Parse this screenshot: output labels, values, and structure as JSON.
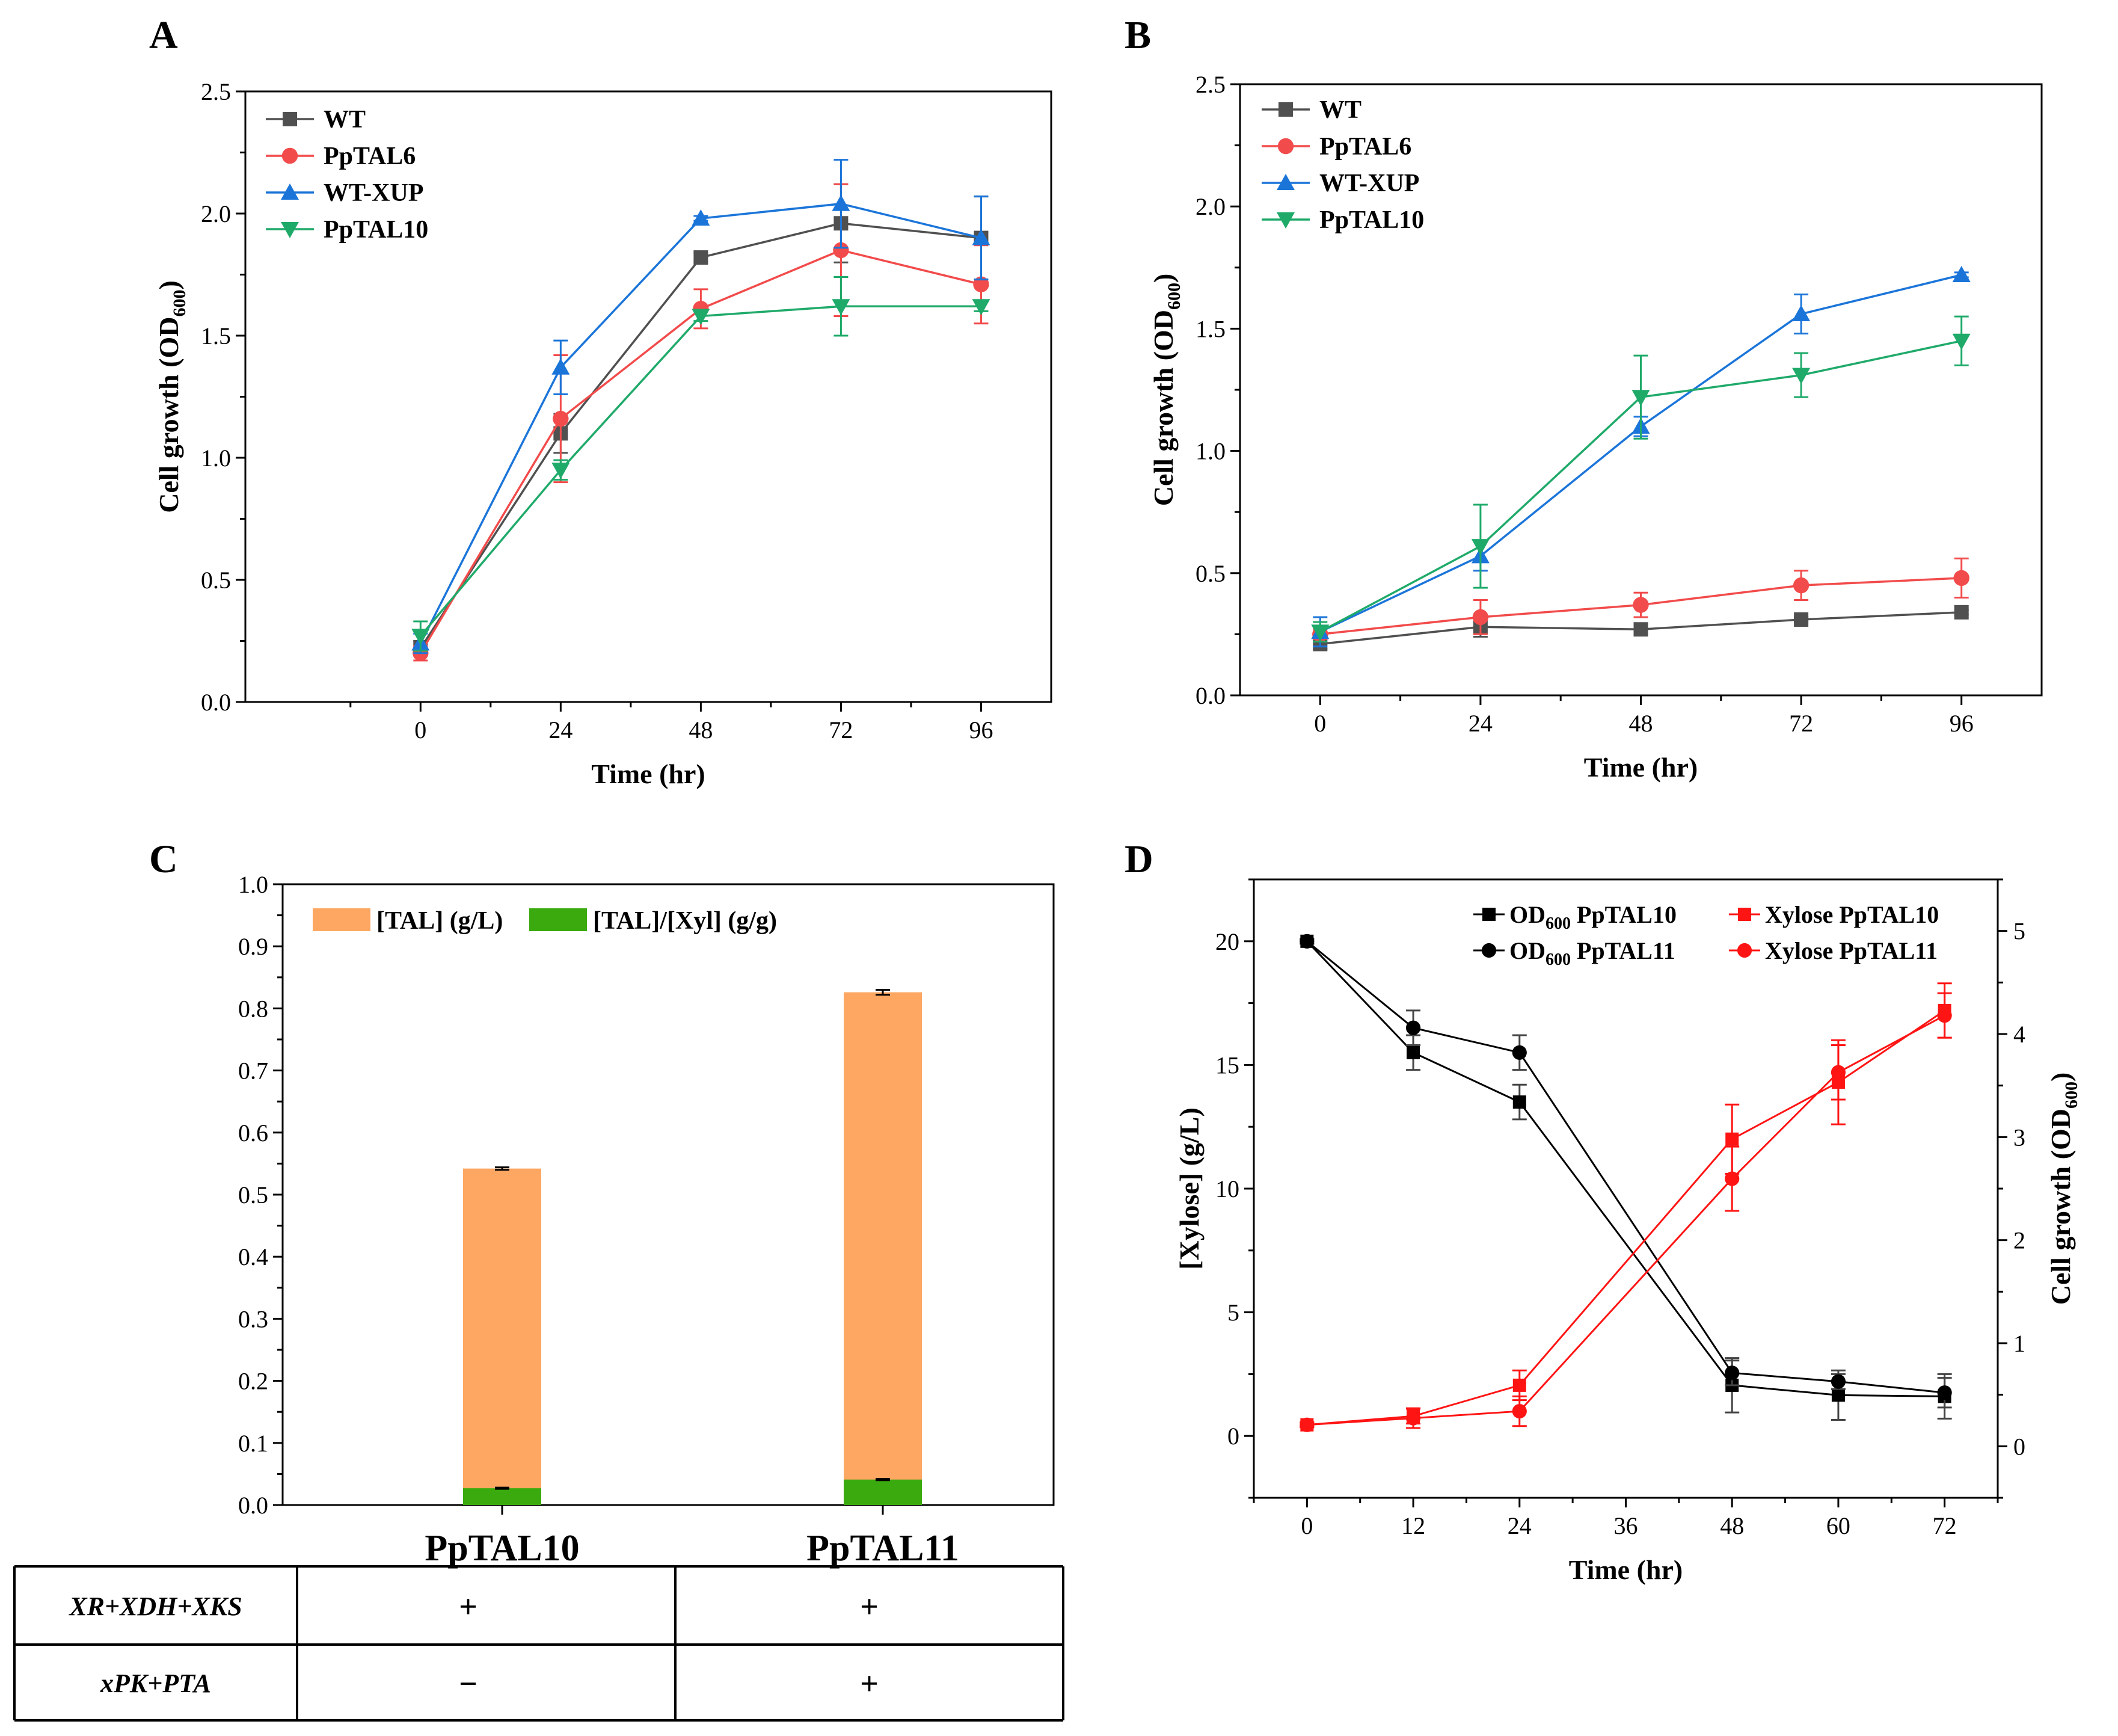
{
  "colors": {
    "wt": "#505050",
    "pptal6": "#f24b4b",
    "wtxup": "#1b75d9",
    "pptal10": "#1faa6a",
    "tal_bar": "#fda762",
    "ratio_bar": "#3aaa0e",
    "od_line": "#000000",
    "xylose_line": "#ff1414"
  },
  "chart_data": [
    {
      "panel": "A",
      "type": "line",
      "xlabel": "Time (hr)",
      "ylabel_main": "Cell growth (OD",
      "ylabel_sub": "600",
      "ylabel_close": ")",
      "x": [
        0,
        24,
        48,
        72,
        96
      ],
      "xlim": [
        -30,
        108
      ],
      "ylim": [
        0,
        2.5
      ],
      "xticks": [
        "0",
        "24",
        "48",
        "72",
        "96"
      ],
      "yticks": [
        "0.0",
        "0.5",
        "1.0",
        "1.5",
        "2.0",
        "2.5"
      ],
      "legend_position": "top-left",
      "series": [
        {
          "name": "WT",
          "key": "wt",
          "marker": "square",
          "values": [
            0.22,
            1.1,
            1.82,
            1.96,
            1.9
          ],
          "err": [
            0.03,
            0.08,
            0.02,
            0.16,
            0.17
          ]
        },
        {
          "name": "PpTAL6",
          "key": "pptal6",
          "marker": "circle",
          "values": [
            0.2,
            1.16,
            1.61,
            1.85,
            1.71
          ],
          "err": [
            0.03,
            0.26,
            0.08,
            0.27,
            0.16
          ]
        },
        {
          "name": "WT-XUP",
          "key": "wtxup",
          "marker": "triangle-up",
          "values": [
            0.24,
            1.37,
            1.98,
            2.04,
            1.9
          ],
          "err": [
            0.04,
            0.11,
            0.01,
            0.18,
            0.17
          ]
        },
        {
          "name": "PpTAL10",
          "key": "pptal10",
          "marker": "triangle-down",
          "values": [
            0.27,
            0.95,
            1.58,
            1.62,
            1.62
          ],
          "err": [
            0.06,
            0.04,
            0.02,
            0.12,
            0.02
          ]
        }
      ]
    },
    {
      "panel": "B",
      "type": "line",
      "xlabel": "Time (hr)",
      "ylabel_main": "Cell growth (OD",
      "ylabel_sub": "600",
      "ylabel_close": ")",
      "x": [
        0,
        24,
        48,
        72,
        96
      ],
      "xlim": [
        -12,
        108
      ],
      "ylim": [
        0,
        2.5
      ],
      "xticks": [
        "0",
        "24",
        "48",
        "72",
        "96"
      ],
      "yticks": [
        "0.0",
        "0.5",
        "1.0",
        "1.5",
        "2.0",
        "2.5"
      ],
      "legend_position": "top-left",
      "series": [
        {
          "name": "WT",
          "key": "wt",
          "marker": "square",
          "values": [
            0.21,
            0.28,
            0.27,
            0.31,
            0.34
          ],
          "err": [
            0.02,
            0.04,
            0.01,
            0.01,
            0.01
          ]
        },
        {
          "name": "PpTAL6",
          "key": "pptal6",
          "marker": "circle",
          "values": [
            0.25,
            0.32,
            0.37,
            0.45,
            0.48
          ],
          "err": [
            0.02,
            0.07,
            0.05,
            0.06,
            0.08
          ]
        },
        {
          "name": "WT-XUP",
          "key": "wtxup",
          "marker": "triangle-up",
          "values": [
            0.26,
            0.57,
            1.1,
            1.56,
            1.72
          ],
          "err": [
            0.06,
            0.06,
            0.04,
            0.08,
            0.01
          ]
        },
        {
          "name": "PpTAL10",
          "key": "pptal10",
          "marker": "triangle-down",
          "values": [
            0.26,
            0.61,
            1.22,
            1.31,
            1.45
          ],
          "err": [
            0.04,
            0.17,
            0.17,
            0.09,
            0.1
          ]
        }
      ]
    },
    {
      "panel": "C",
      "type": "bar",
      "stacked": "overlay",
      "categories": [
        "PpTAL10",
        "PpTAL11"
      ],
      "ylim": [
        0,
        1.0
      ],
      "yticks": [
        "0.0",
        "0.1",
        "0.2",
        "0.3",
        "0.4",
        "0.5",
        "0.6",
        "0.7",
        "0.8",
        "0.9",
        "1.0"
      ],
      "legend_position": "top",
      "series": [
        {
          "name": "[TAL] (g/L)",
          "key": "tal_bar",
          "values": [
            0.542,
            0.826
          ],
          "err": [
            0.002,
            0.004
          ]
        },
        {
          "name": "[TAL]/[Xyl] (g/g)",
          "key": "ratio_bar",
          "values": [
            0.027,
            0.041
          ],
          "err": [
            0.001,
            0.001
          ]
        }
      ],
      "table": {
        "rows": [
          {
            "label": "XR+XDH+XKS",
            "values": [
              "+",
              "+"
            ]
          },
          {
            "label": "xPK+PTA",
            "values": [
              "−",
              "+"
            ]
          }
        ]
      }
    },
    {
      "panel": "D",
      "type": "line",
      "xlabel": "Time (hr)",
      "ylabel_left": "[Xylose] (g/L)",
      "ylabel_right_main": "Cell growth (OD",
      "ylabel_right_sub": "600",
      "ylabel_right_close": ")",
      "x": [
        0,
        12,
        24,
        48,
        60,
        72
      ],
      "xlim": [
        -6,
        78
      ],
      "ylim_left": [
        -2.5,
        22.5
      ],
      "ylim_right": [
        -0.5,
        5.5
      ],
      "xticks": [
        "0",
        "12",
        "24",
        "36",
        "48",
        "60",
        "72"
      ],
      "xtick_values": [
        0,
        12,
        24,
        36,
        48,
        60,
        72
      ],
      "yticks_left": [
        "0",
        "5",
        "10",
        "15",
        "20"
      ],
      "yticks_right": [
        "0",
        "1",
        "2",
        "3",
        "4",
        "5"
      ],
      "legend_position": "top-right",
      "series": [
        {
          "name_prefix": "OD",
          "name_sub": "600",
          "name_suffix": " PpTAL10",
          "key": "od_line",
          "marker": "square",
          "axis": "left",
          "values": [
            20.0,
            15.5,
            13.5,
            2.05,
            1.65,
            1.6
          ],
          "err": [
            0.1,
            0.7,
            0.7,
            1.1,
            1.0,
            0.9
          ]
        },
        {
          "name_prefix": "OD",
          "name_sub": "600",
          "name_suffix": " PpTAL11",
          "key": "od_line",
          "marker": "circle",
          "axis": "left",
          "values": [
            20.0,
            16.5,
            15.5,
            2.55,
            2.2,
            1.75
          ],
          "err": [
            0.1,
            0.7,
            0.7,
            0.5,
            0.3,
            0.6
          ]
        },
        {
          "name": "Xylose PpTAL10",
          "key": "xylose_line",
          "marker": "square",
          "axis": "left",
          "values": [
            0.45,
            0.8,
            2.05,
            12.0,
            14.3,
            17.2
          ],
          "err": [
            0.1,
            0.3,
            0.6,
            1.4,
            1.7,
            1.1
          ]
        },
        {
          "name": "Xylose PpTAL11",
          "key": "xylose_line",
          "marker": "circle",
          "axis": "left",
          "values": [
            0.45,
            0.72,
            1.0,
            10.4,
            14.7,
            17.0
          ],
          "err": [
            0.1,
            0.4,
            0.6,
            1.3,
            1.1,
            0.9
          ]
        }
      ]
    }
  ]
}
